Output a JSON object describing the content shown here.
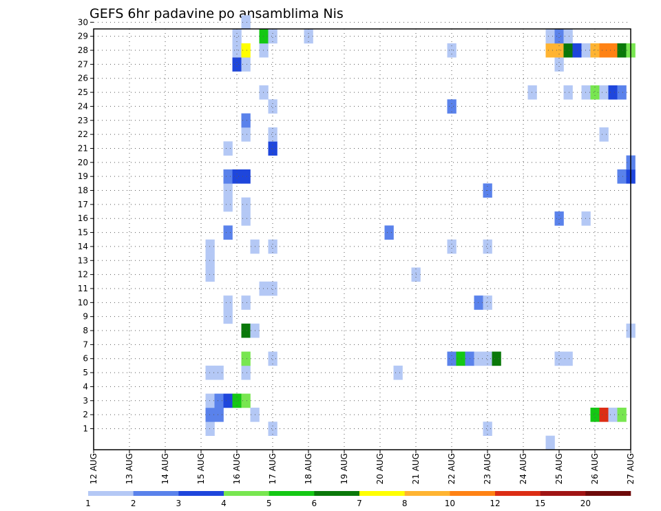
{
  "chart_data": {
    "type": "heatmap",
    "title": "GEFS 6hr padavine po ansamblima Nis",
    "y_ticks": [
      "1",
      "2",
      "3",
      "4",
      "5",
      "6",
      "7",
      "8",
      "9",
      "10",
      "11",
      "12",
      "13",
      "14",
      "15",
      "16",
      "17",
      "18",
      "19",
      "20",
      "21",
      "22",
      "23",
      "24",
      "25",
      "26",
      "27",
      "28",
      "29",
      "30"
    ],
    "x_ticks": [
      "12 AUG",
      "13 AUG",
      "14 AUG",
      "15 AUG",
      "16 AUG",
      "17 AUG",
      "18 AUG",
      "19 AUG",
      "20 AUG",
      "21 AUG",
      "22 AUG",
      "23 AUG",
      "24 AUG",
      "25 AUG",
      "26 AUG",
      "27 AUG"
    ],
    "x_range_days": [
      12,
      27
    ],
    "y_range": [
      0,
      30.5
    ],
    "grid": true,
    "colorbar": {
      "labels": [
        "1",
        "2",
        "3",
        "4",
        "5",
        "6",
        "7",
        "8",
        "10",
        "12",
        "15",
        "20"
      ],
      "colors": [
        "#b4c8f5",
        "#5a82eb",
        "#1e46dc",
        "#78e650",
        "#14c814",
        "#0a780a",
        "#ffff00",
        "#ffb432",
        "#ff8214",
        "#dc2d14",
        "#a01414",
        "#6e0a0a"
      ]
    },
    "cells": [
      {
        "day": 15.25,
        "member": 1,
        "level": 1
      },
      {
        "day": 15.25,
        "member": 2,
        "level": 2
      },
      {
        "day": 15.25,
        "member": 3,
        "level": 1
      },
      {
        "day": 15.25,
        "member": 5,
        "level": 1
      },
      {
        "day": 15.25,
        "member": 12,
        "level": 1
      },
      {
        "day": 15.25,
        "member": 13,
        "level": 1
      },
      {
        "day": 15.25,
        "member": 14,
        "level": 1
      },
      {
        "day": 15.5,
        "member": 2,
        "level": 2
      },
      {
        "day": 15.5,
        "member": 3,
        "level": 2
      },
      {
        "day": 15.5,
        "member": 5,
        "level": 1
      },
      {
        "day": 15.75,
        "member": 3,
        "level": 3
      },
      {
        "day": 15.75,
        "member": 9,
        "level": 1
      },
      {
        "day": 15.75,
        "member": 10,
        "level": 1
      },
      {
        "day": 15.75,
        "member": 15,
        "level": 2
      },
      {
        "day": 15.75,
        "member": 17,
        "level": 1
      },
      {
        "day": 15.75,
        "member": 18,
        "level": 1
      },
      {
        "day": 15.75,
        "member": 19,
        "level": 2
      },
      {
        "day": 15.75,
        "member": 21,
        "level": 1
      },
      {
        "day": 16.0,
        "member": 3,
        "level": 5
      },
      {
        "day": 16.0,
        "member": 19,
        "level": 3
      },
      {
        "day": 16.0,
        "member": 27,
        "level": 3
      },
      {
        "day": 16.0,
        "member": 28,
        "level": 1
      },
      {
        "day": 16.0,
        "member": 29,
        "level": 1
      },
      {
        "day": 16.25,
        "member": 3,
        "level": 4
      },
      {
        "day": 16.25,
        "member": 5,
        "level": 1
      },
      {
        "day": 16.25,
        "member": 6,
        "level": 4
      },
      {
        "day": 16.25,
        "member": 8,
        "level": 6
      },
      {
        "day": 16.25,
        "member": 10,
        "level": 1
      },
      {
        "day": 16.25,
        "member": 16,
        "level": 1
      },
      {
        "day": 16.25,
        "member": 17,
        "level": 1
      },
      {
        "day": 16.25,
        "member": 19,
        "level": 3
      },
      {
        "day": 16.25,
        "member": 22,
        "level": 1
      },
      {
        "day": 16.25,
        "member": 23,
        "level": 2
      },
      {
        "day": 16.25,
        "member": 27,
        "level": 1
      },
      {
        "day": 16.25,
        "member": 28,
        "level": 7
      },
      {
        "day": 16.25,
        "member": 30,
        "level": 1
      },
      {
        "day": 16.5,
        "member": 2,
        "level": 1
      },
      {
        "day": 16.5,
        "member": 8,
        "level": 1
      },
      {
        "day": 16.5,
        "member": 14,
        "level": 1
      },
      {
        "day": 16.75,
        "member": 11,
        "level": 1
      },
      {
        "day": 16.75,
        "member": 25,
        "level": 1
      },
      {
        "day": 16.75,
        "member": 28,
        "level": 1
      },
      {
        "day": 16.75,
        "member": 29,
        "level": 5
      },
      {
        "day": 17.0,
        "member": 1,
        "level": 1
      },
      {
        "day": 17.0,
        "member": 6,
        "level": 1
      },
      {
        "day": 17.0,
        "member": 11,
        "level": 1
      },
      {
        "day": 17.0,
        "member": 14,
        "level": 1
      },
      {
        "day": 17.0,
        "member": 21,
        "level": 3
      },
      {
        "day": 17.0,
        "member": 22,
        "level": 1
      },
      {
        "day": 17.0,
        "member": 24,
        "level": 1
      },
      {
        "day": 17.0,
        "member": 29,
        "level": 1
      },
      {
        "day": 18.0,
        "member": 29,
        "level": 1
      },
      {
        "day": 20.25,
        "member": 15,
        "level": 2
      },
      {
        "day": 20.5,
        "member": 5,
        "level": 1
      },
      {
        "day": 21.0,
        "member": 12,
        "level": 1
      },
      {
        "day": 22.0,
        "member": 6,
        "level": 2
      },
      {
        "day": 22.0,
        "member": 14,
        "level": 1
      },
      {
        "day": 22.0,
        "member": 24,
        "level": 2
      },
      {
        "day": 22.0,
        "member": 28,
        "level": 1
      },
      {
        "day": 22.25,
        "member": 6,
        "level": 5
      },
      {
        "day": 22.5,
        "member": 6,
        "level": 2
      },
      {
        "day": 22.75,
        "member": 6,
        "level": 1
      },
      {
        "day": 22.75,
        "member": 10,
        "level": 2
      },
      {
        "day": 23.0,
        "member": 1,
        "level": 1
      },
      {
        "day": 23.0,
        "member": 6,
        "level": 1
      },
      {
        "day": 23.0,
        "member": 10,
        "level": 1
      },
      {
        "day": 23.0,
        "member": 14,
        "level": 1
      },
      {
        "day": 23.0,
        "member": 18,
        "level": 2
      },
      {
        "day": 23.25,
        "member": 6,
        "level": 6
      },
      {
        "day": 24.25,
        "member": 25,
        "level": 1
      },
      {
        "day": 24.75,
        "member": 0,
        "level": 1
      },
      {
        "day": 24.75,
        "member": 28,
        "level": 8
      },
      {
        "day": 24.75,
        "member": 29,
        "level": 1
      },
      {
        "day": 25.0,
        "member": 6,
        "level": 1
      },
      {
        "day": 25.0,
        "member": 16,
        "level": 2
      },
      {
        "day": 25.0,
        "member": 27,
        "level": 1
      },
      {
        "day": 25.0,
        "member": 28,
        "level": 8
      },
      {
        "day": 25.0,
        "member": 29,
        "level": 2
      },
      {
        "day": 25.25,
        "member": 6,
        "level": 1
      },
      {
        "day": 25.25,
        "member": 25,
        "level": 1
      },
      {
        "day": 25.25,
        "member": 28,
        "level": 6
      },
      {
        "day": 25.25,
        "member": 29,
        "level": 1
      },
      {
        "day": 25.5,
        "member": 28,
        "level": 3
      },
      {
        "day": 25.75,
        "member": 16,
        "level": 1
      },
      {
        "day": 25.75,
        "member": 25,
        "level": 1
      },
      {
        "day": 25.75,
        "member": 28,
        "level": 1
      },
      {
        "day": 26.0,
        "member": 2,
        "level": 5
      },
      {
        "day": 26.0,
        "member": 25,
        "level": 4
      },
      {
        "day": 26.0,
        "member": 28,
        "level": 8
      },
      {
        "day": 26.25,
        "member": 2,
        "level": 10
      },
      {
        "day": 26.25,
        "member": 22,
        "level": 1
      },
      {
        "day": 26.25,
        "member": 25,
        "level": 1
      },
      {
        "day": 26.25,
        "member": 28,
        "level": 9
      },
      {
        "day": 26.5,
        "member": 2,
        "level": 1
      },
      {
        "day": 26.5,
        "member": 25,
        "level": 3
      },
      {
        "day": 26.5,
        "member": 28,
        "level": 9
      },
      {
        "day": 26.75,
        "member": 2,
        "level": 4
      },
      {
        "day": 26.75,
        "member": 19,
        "level": 2
      },
      {
        "day": 26.75,
        "member": 25,
        "level": 2
      },
      {
        "day": 26.75,
        "member": 28,
        "level": 6
      },
      {
        "day": 27.0,
        "member": 8,
        "level": 1
      },
      {
        "day": 27.0,
        "member": 19,
        "level": 3
      },
      {
        "day": 27.0,
        "member": 20,
        "level": 2
      },
      {
        "day": 27.0,
        "member": 28,
        "level": 4
      }
    ]
  }
}
